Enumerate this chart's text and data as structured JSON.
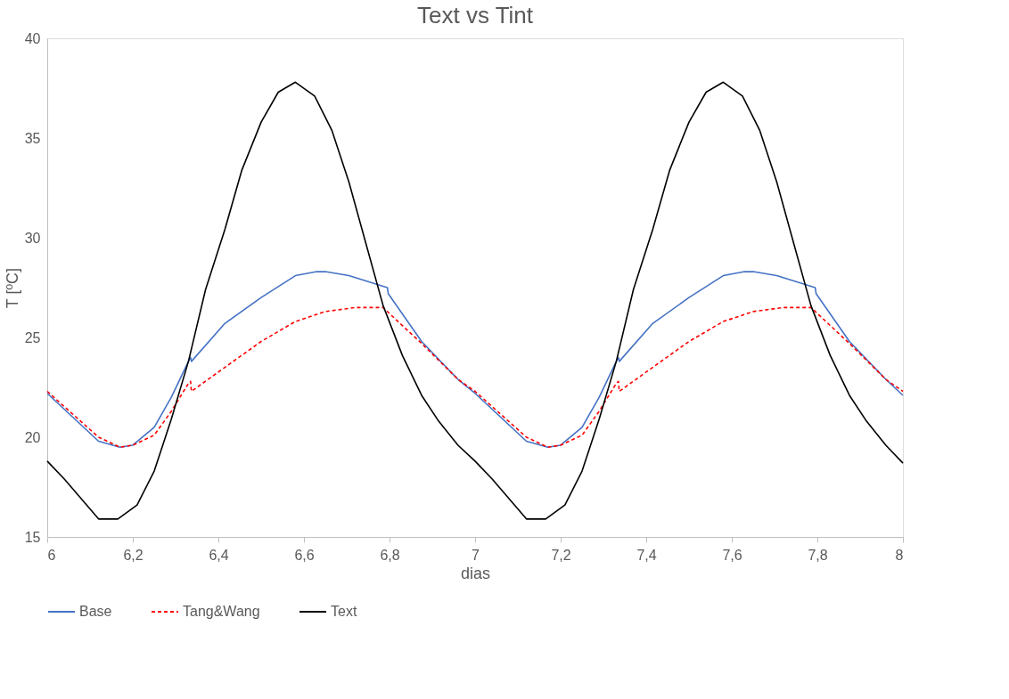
{
  "chart_data": {
    "type": "line",
    "title": "Text vs Tint",
    "xlabel": "dias",
    "ylabel": "T [ºC]",
    "xlim": [
      6,
      8
    ],
    "ylim": [
      15,
      40
    ],
    "xticks": [
      6,
      {
        "value": 6.2,
        "label": "6,2"
      },
      {
        "value": 6.4,
        "label": "6,4"
      },
      {
        "value": 6.6,
        "label": "6,6"
      },
      {
        "value": 6.8,
        "label": "6,8"
      },
      7,
      {
        "value": 7.2,
        "label": "7,2"
      },
      {
        "value": 7.4,
        "label": "7,4"
      },
      {
        "value": 7.6,
        "label": "7,6"
      },
      {
        "value": 7.8,
        "label": "7,8"
      },
      8
    ],
    "yticks": [
      15,
      20,
      25,
      30,
      35,
      40
    ],
    "grid": false,
    "legend": "bottom",
    "marker": "none",
    "series": [
      {
        "name": "Base",
        "color": "#4472c4",
        "line_style": "solid",
        "x": [
          6.0,
          6.12,
          6.17,
          6.2,
          6.25,
          6.29,
          6.33,
          6.335,
          6.337,
          6.415,
          6.5,
          6.58,
          6.63,
          6.65,
          6.705,
          6.795,
          6.797,
          6.875,
          6.96,
          7.0,
          7.12,
          7.17,
          7.2,
          7.25,
          7.29,
          7.33,
          7.335,
          7.337,
          7.415,
          7.5,
          7.58,
          7.63,
          7.65,
          7.705,
          7.795,
          7.797,
          7.875,
          7.96,
          8.0
        ],
        "values": [
          22.2,
          19.8,
          19.5,
          19.6,
          20.5,
          22.0,
          23.8,
          24.0,
          23.8,
          25.7,
          27.0,
          28.1,
          28.3,
          28.3,
          28.1,
          27.5,
          27.2,
          24.8,
          22.9,
          22.2,
          19.8,
          19.5,
          19.6,
          20.5,
          22.0,
          23.8,
          24.0,
          23.8,
          25.7,
          27.0,
          28.1,
          28.3,
          28.3,
          28.1,
          27.5,
          27.2,
          24.8,
          22.9,
          22.1
        ]
      },
      {
        "name": "Tang&Wang",
        "color": "#ff0000",
        "line_style": "dashed",
        "x": [
          6.0,
          6.12,
          6.17,
          6.2,
          6.25,
          6.29,
          6.33,
          6.335,
          6.337,
          6.415,
          6.5,
          6.58,
          6.65,
          6.72,
          6.785,
          6.875,
          6.96,
          7.0,
          7.12,
          7.17,
          7.2,
          7.25,
          7.29,
          7.33,
          7.335,
          7.337,
          7.415,
          7.5,
          7.58,
          7.65,
          7.72,
          7.785,
          7.875,
          7.96,
          8.0
        ],
        "values": [
          22.3,
          20.0,
          19.5,
          19.6,
          20.1,
          21.3,
          22.7,
          22.8,
          22.3,
          23.5,
          24.8,
          25.8,
          26.3,
          26.5,
          26.5,
          24.7,
          22.9,
          22.3,
          20.0,
          19.5,
          19.6,
          20.1,
          21.3,
          22.7,
          22.8,
          22.3,
          23.5,
          24.8,
          25.8,
          26.3,
          26.5,
          26.5,
          24.7,
          22.9,
          22.3
        ]
      },
      {
        "name": "Text",
        "color": "#000000",
        "line_style": "solid",
        "x": [
          6.0,
          6.04,
          6.12,
          6.165,
          6.21,
          6.25,
          6.29,
          6.33,
          6.37,
          6.415,
          6.455,
          6.5,
          6.54,
          6.58,
          6.625,
          6.665,
          6.705,
          6.745,
          6.785,
          6.83,
          6.875,
          6.915,
          6.96,
          7.0,
          7.04,
          7.12,
          7.165,
          7.21,
          7.25,
          7.29,
          7.33,
          7.37,
          7.415,
          7.455,
          7.5,
          7.54,
          7.58,
          7.625,
          7.665,
          7.705,
          7.745,
          7.785,
          7.83,
          7.875,
          7.915,
          7.96,
          8.0
        ],
        "values": [
          18.8,
          17.9,
          15.9,
          15.9,
          16.6,
          18.3,
          20.9,
          23.8,
          27.4,
          30.4,
          33.4,
          35.8,
          37.3,
          37.8,
          37.1,
          35.4,
          32.8,
          29.7,
          26.6,
          24.1,
          22.1,
          20.8,
          19.6,
          18.8,
          17.9,
          15.9,
          15.9,
          16.6,
          18.3,
          20.9,
          23.8,
          27.4,
          30.4,
          33.4,
          35.8,
          37.3,
          37.8,
          37.1,
          35.4,
          32.8,
          29.7,
          26.6,
          24.1,
          22.1,
          20.8,
          19.6,
          18.7
        ]
      }
    ]
  }
}
